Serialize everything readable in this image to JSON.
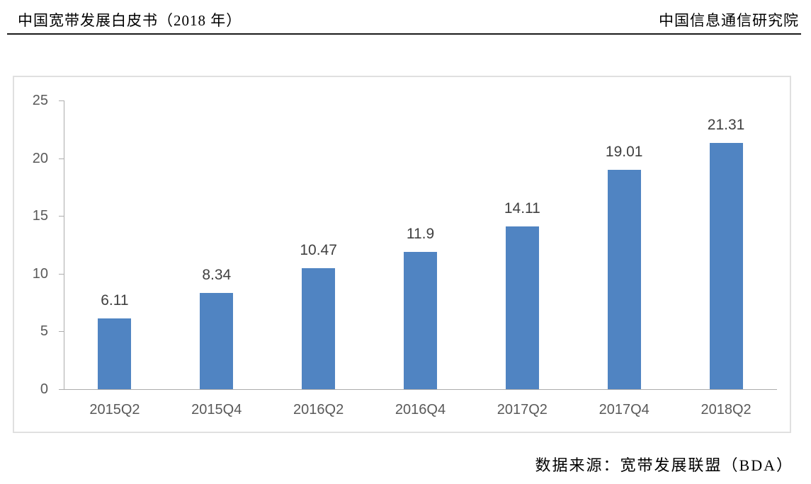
{
  "header": {
    "left_title": "中国宽带发展白皮书（2018 年）",
    "right_title": "中国信息通信研究院"
  },
  "chart_data": {
    "type": "bar",
    "categories": [
      "2015Q2",
      "2015Q4",
      "2016Q2",
      "2016Q4",
      "2017Q2",
      "2017Q4",
      "2018Q2"
    ],
    "values": [
      6.11,
      8.34,
      10.47,
      11.9,
      14.11,
      19.01,
      21.31
    ],
    "data_labels": [
      "6.11",
      "8.34",
      "10.47",
      "11.9",
      "14.11",
      "19.01",
      "21.31"
    ],
    "title": "",
    "xlabel": "",
    "ylabel": "",
    "ylim": [
      0,
      25
    ],
    "yticks": [
      0,
      5,
      10,
      15,
      20,
      25
    ],
    "grid": false,
    "legend": "none",
    "bar_color": "#5084C2"
  },
  "footer": {
    "source_note": "数据来源：宽带发展联盟（BDA）"
  },
  "colors": {
    "bar": "#5084C2",
    "axis_line": "#ADADAD",
    "tick_label": "#595959",
    "data_label": "#404040",
    "frame_border": "#E0E0E0",
    "header_text": "#000000"
  }
}
